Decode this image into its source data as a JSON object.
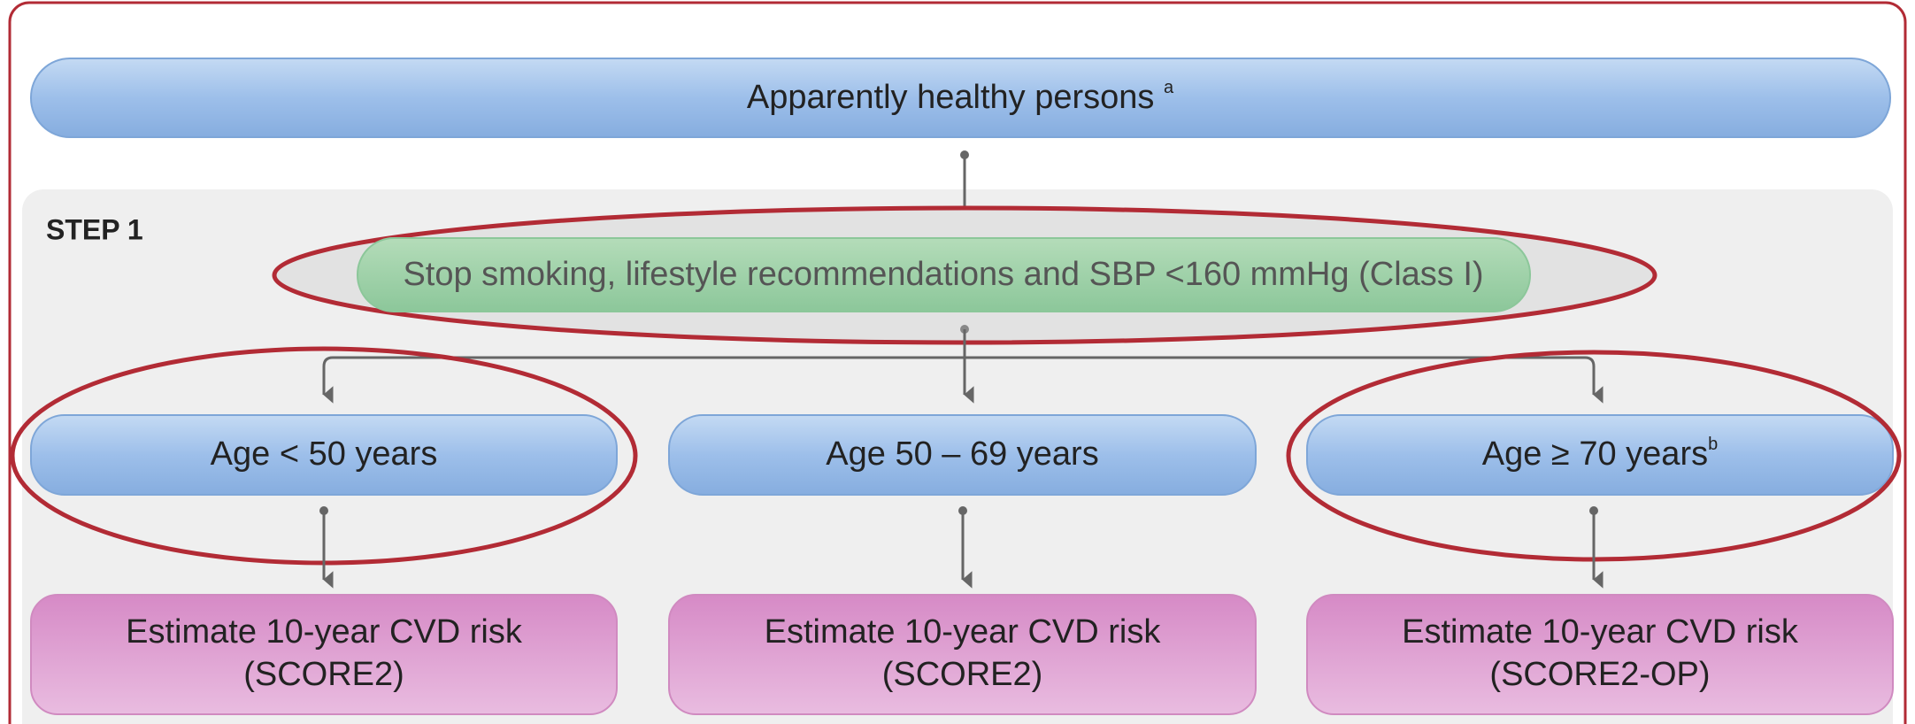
{
  "top": {
    "label": "Apparently healthy persons",
    "superscript": "a"
  },
  "step": "STEP 1",
  "step1_box": "Stop smoking, lifestyle recommendations and SBP <160 mmHg (Class I)",
  "age_groups": [
    {
      "label": "Age < 50 years",
      "superscript": null,
      "estimate": "Estimate 10-year CVD risk",
      "model": "(SCORE2)"
    },
    {
      "label": "Age 50 – 69 years",
      "superscript": null,
      "estimate": "Estimate 10-year CVD risk",
      "model": "(SCORE2)"
    },
    {
      "label": "Age ≥ 70 years",
      "superscript": "b",
      "estimate": "Estimate 10-year CVD risk",
      "model": "(SCORE2-OP)"
    }
  ]
}
